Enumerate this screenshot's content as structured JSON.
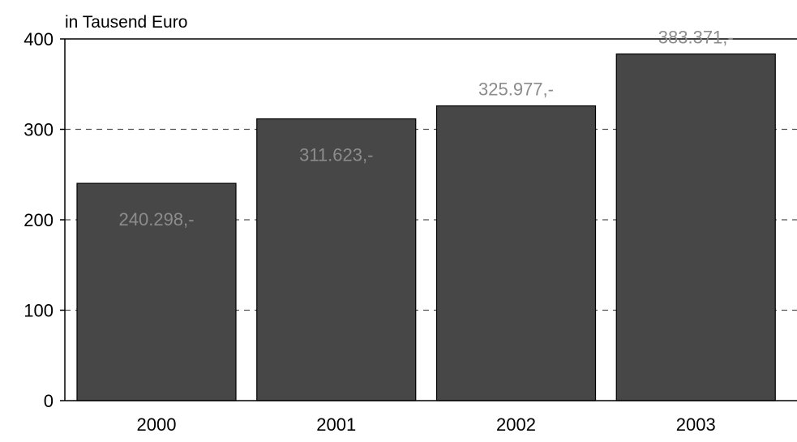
{
  "chart_data": {
    "type": "bar",
    "unit_label": "in Tausend Euro",
    "categories": [
      "2000",
      "2001",
      "2002",
      "2003"
    ],
    "values": [
      240.298,
      311.623,
      325.977,
      383.371
    ],
    "value_labels": [
      "240.298,-",
      "311.623,-",
      "325.977,-",
      "383.371,-"
    ],
    "ylim": [
      0,
      400
    ],
    "yticks": [
      "0",
      "100",
      "200",
      "300",
      "400"
    ],
    "grid": true,
    "colors": {
      "bar": "#474747",
      "bar_stroke": "#000000",
      "data_label": "#8c8c8c",
      "grid": "#555555"
    }
  }
}
